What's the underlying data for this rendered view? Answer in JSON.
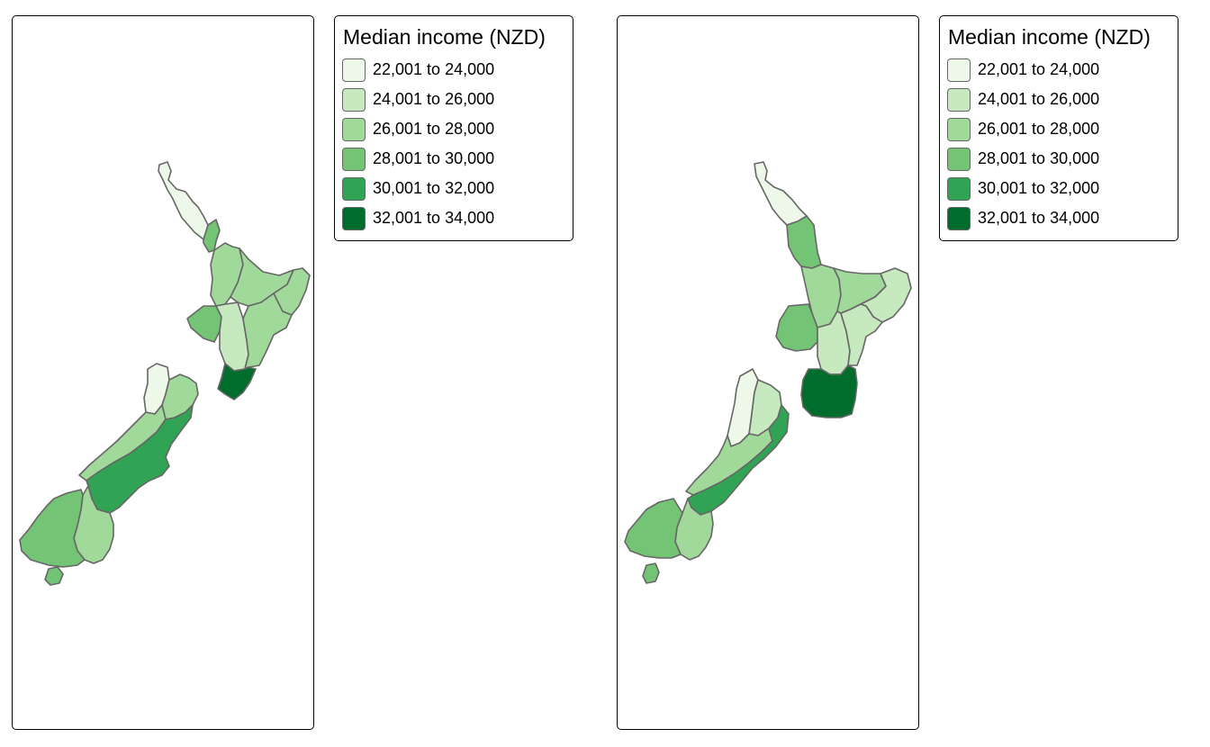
{
  "legend": {
    "title": "Median income (NZD)",
    "classes": [
      {
        "label": "22,001 to 24,000",
        "color": "#edf8e9"
      },
      {
        "label": "24,001 to 26,000",
        "color": "#c7e9c0"
      },
      {
        "label": "26,001 to 28,000",
        "color": "#a1d99b"
      },
      {
        "label": "28,001 to 30,000",
        "color": "#74c476"
      },
      {
        "label": "30,001 to 32,000",
        "color": "#31a354"
      },
      {
        "label": "32,001 to 34,000",
        "color": "#006d2c"
      }
    ]
  },
  "colors": {
    "border": "#666666",
    "frame": "#000000"
  }
}
